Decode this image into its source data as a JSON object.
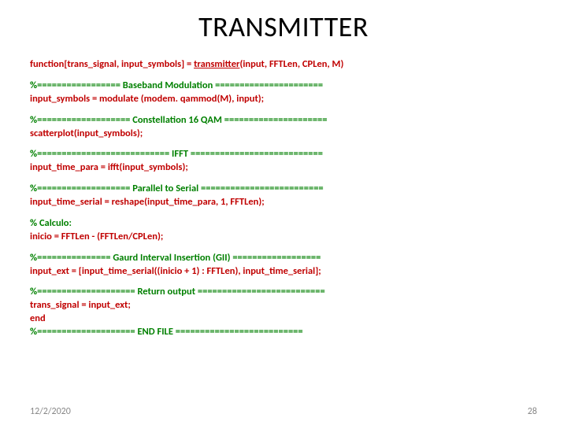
{
  "title": "TRANSMITTER",
  "title_fontsize": 36,
  "code_fontsize": 12.5,
  "footer_fontsize": 12,
  "colors": {
    "title": "#000000",
    "code_red": "#c00000",
    "code_green": "#008000",
    "footer": "#888888",
    "background": "#ffffff"
  },
  "blocks": [
    {
      "lines": [
        {
          "segments": [
            {
              "text": "function",
              "color": "red"
            },
            {
              "text": "[trans_signal, input_symbols] = ",
              "color": "red"
            },
            {
              "text": "transmitter",
              "color": "red",
              "underline": true
            },
            {
              "text": "(input, FFTLen, CPLen, M)",
              "color": "red"
            }
          ]
        }
      ]
    },
    {
      "lines": [
        {
          "segments": [
            {
              "text": "%================= Baseband Modulation ======================",
              "color": "green"
            }
          ]
        },
        {
          "segments": [
            {
              "text": "input_symbols = modulate (modem. qammod(M), input);",
              "color": "red"
            }
          ]
        }
      ]
    },
    {
      "lines": [
        {
          "segments": [
            {
              "text": "%=================== Constellation 16 QAM =====================",
              "color": "green"
            }
          ]
        },
        {
          "segments": [
            {
              "text": "scatterplot(input_symbols);",
              "color": "red"
            }
          ]
        }
      ]
    },
    {
      "lines": [
        {
          "segments": [
            {
              "text": "%=========================== IFFT ===========================",
              "color": "green"
            }
          ]
        },
        {
          "segments": [
            {
              "text": "input_time_para = ifft(input_symbols);",
              "color": "red"
            }
          ]
        }
      ]
    },
    {
      "lines": [
        {
          "segments": [
            {
              "text": "%=================== Parallel to Serial =========================",
              "color": "green"
            }
          ]
        },
        {
          "segments": [
            {
              "text": "input_time_serial = reshape(input_time_para, 1, FFTLen);",
              "color": "red"
            }
          ]
        }
      ]
    },
    {
      "lines": [
        {
          "segments": [
            {
              "text": "% Calculo:",
              "color": "green"
            }
          ]
        },
        {
          "segments": [
            {
              "text": "inicio = FFTLen - (FFTLen/CPLen);",
              "color": "red"
            }
          ]
        }
      ]
    },
    {
      "lines": [
        {
          "segments": [
            {
              "text": "%=============== Gaurd Interval Insertion (GII) ==================",
              "color": "green"
            }
          ]
        },
        {
          "segments": [
            {
              "text": "input_ext = [input_time_serial((inicio + 1) : FFTLen), input_time_serial];",
              "color": "red"
            }
          ]
        }
      ]
    },
    {
      "lines": [
        {
          "segments": [
            {
              "text": "%==================== Return output ==========================",
              "color": "green"
            }
          ]
        },
        {
          "segments": [
            {
              "text": "trans_signal = input_ext;",
              "color": "red"
            }
          ]
        },
        {
          "segments": [
            {
              "text": "end",
              "color": "red"
            }
          ]
        },
        {
          "segments": [
            {
              "text": "%==================== END FILE ==========================",
              "color": "green"
            }
          ]
        }
      ]
    }
  ],
  "footer": {
    "date": "12/2/2020",
    "page": "28"
  }
}
